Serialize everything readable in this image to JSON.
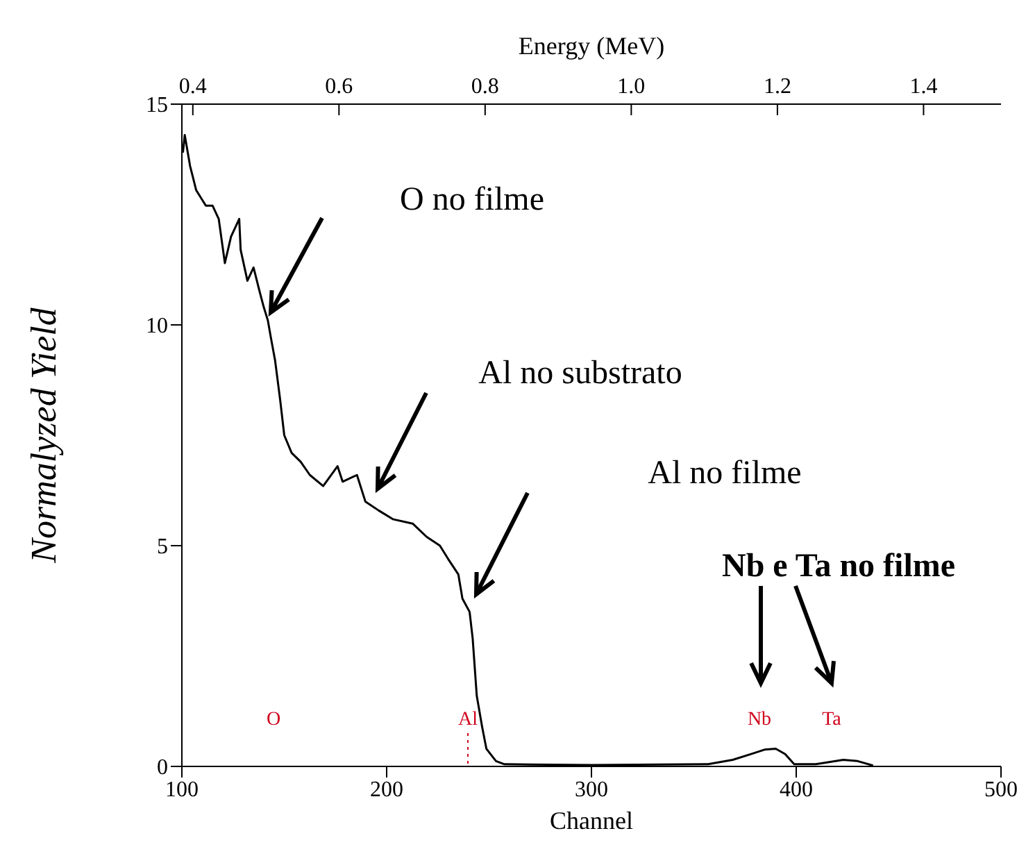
{
  "chart_data": {
    "type": "line",
    "xlabel": "Channel",
    "ylabel": "Normalyzed Yield",
    "x2label": "Energy (MeV)",
    "xlim": [
      100,
      500
    ],
    "xticks": [
      100,
      200,
      300,
      400,
      500
    ],
    "x2lim": [
      0.385,
      1.506
    ],
    "x2ticks": [
      0.4,
      0.6,
      0.8,
      {
        "value": 1,
        "label": "1.0"
      },
      1.2,
      1.4
    ],
    "ylim": [
      0,
      15
    ],
    "yticks": [
      0,
      5,
      10,
      15
    ],
    "marker": "none",
    "line_style": "solid",
    "series": [
      {
        "color": "#000000",
        "x": [
          100.5,
          101.4,
          104,
          107,
          111.7,
          115,
          118,
          121,
          124,
          128,
          128.7,
          132,
          135,
          138,
          140,
          142,
          143.5,
          145.5,
          148,
          150,
          153.6,
          158,
          162.5,
          169,
          176,
          178.5,
          185.5,
          189.6,
          196,
          203,
          212.7,
          219.5,
          226,
          230,
          235,
          237,
          240.5,
          242,
          244,
          246.6,
          248.7,
          253.4,
          257.5,
          300,
          357,
          369,
          378,
          384.5,
          390,
          394.6,
          399,
          409.6,
          423,
          430,
          437.5
        ],
        "values": [
          13.9,
          14.3,
          13.6,
          13.05,
          12.7,
          12.7,
          12.4,
          11.4,
          12,
          12.4,
          11.7,
          11,
          11.3,
          10.75,
          10.4,
          10.1,
          9.7,
          9.2,
          8.3,
          7.5,
          7.1,
          6.9,
          6.6,
          6.35,
          6.8,
          6.45,
          6.6,
          6,
          5.8,
          5.6,
          5.5,
          5.2,
          5,
          4.7,
          4.35,
          3.8,
          3.5,
          2.9,
          1.6,
          0.9,
          0.4,
          0.12,
          0.05,
          0.03,
          0.05,
          0.15,
          0.28,
          0.38,
          0.4,
          0.28,
          0.05,
          0.05,
          0.15,
          0.12,
          0.02
        ]
      }
    ],
    "annotations": [
      "O no filme",
      "Al no substrato",
      "Al no filme",
      "Nb e Ta no filme",
      "O",
      "Al",
      "Nb",
      "Ta"
    ]
  }
}
